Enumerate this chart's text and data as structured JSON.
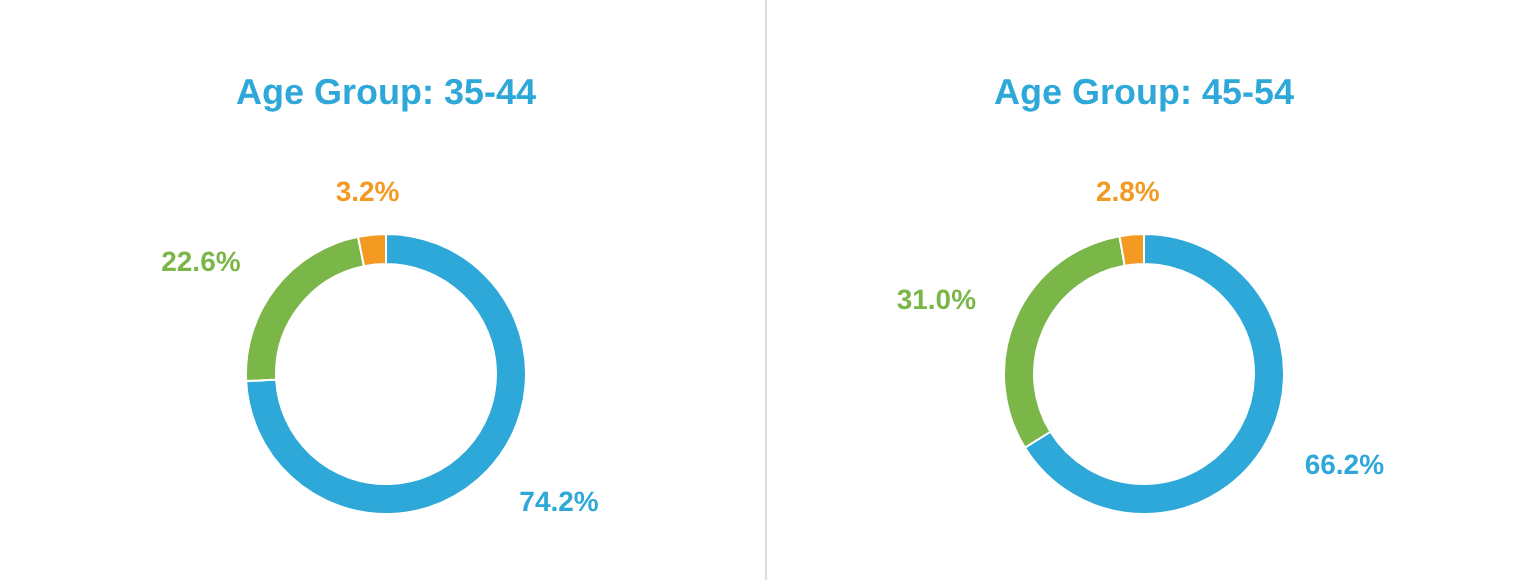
{
  "chart_data": [
    {
      "type": "donut",
      "title": "Age Group: 35-44",
      "categories": [
        null,
        null,
        null
      ],
      "values": [
        74.2,
        22.6,
        3.2
      ],
      "colors": [
        "#2ea8d8",
        "#7ab648",
        "#f39a22"
      ],
      "value_labels": [
        "74.2%",
        "22.6%",
        "3.2%"
      ]
    },
    {
      "type": "donut",
      "title": "Age Group: 45-54",
      "categories": [
        null,
        null,
        null
      ],
      "values": [
        66.2,
        31.0,
        2.8
      ],
      "colors": [
        "#2ea8d8",
        "#7ab648",
        "#f39a22"
      ],
      "value_labels": [
        "66.2%",
        "31.0%",
        "2.8%"
      ]
    }
  ]
}
